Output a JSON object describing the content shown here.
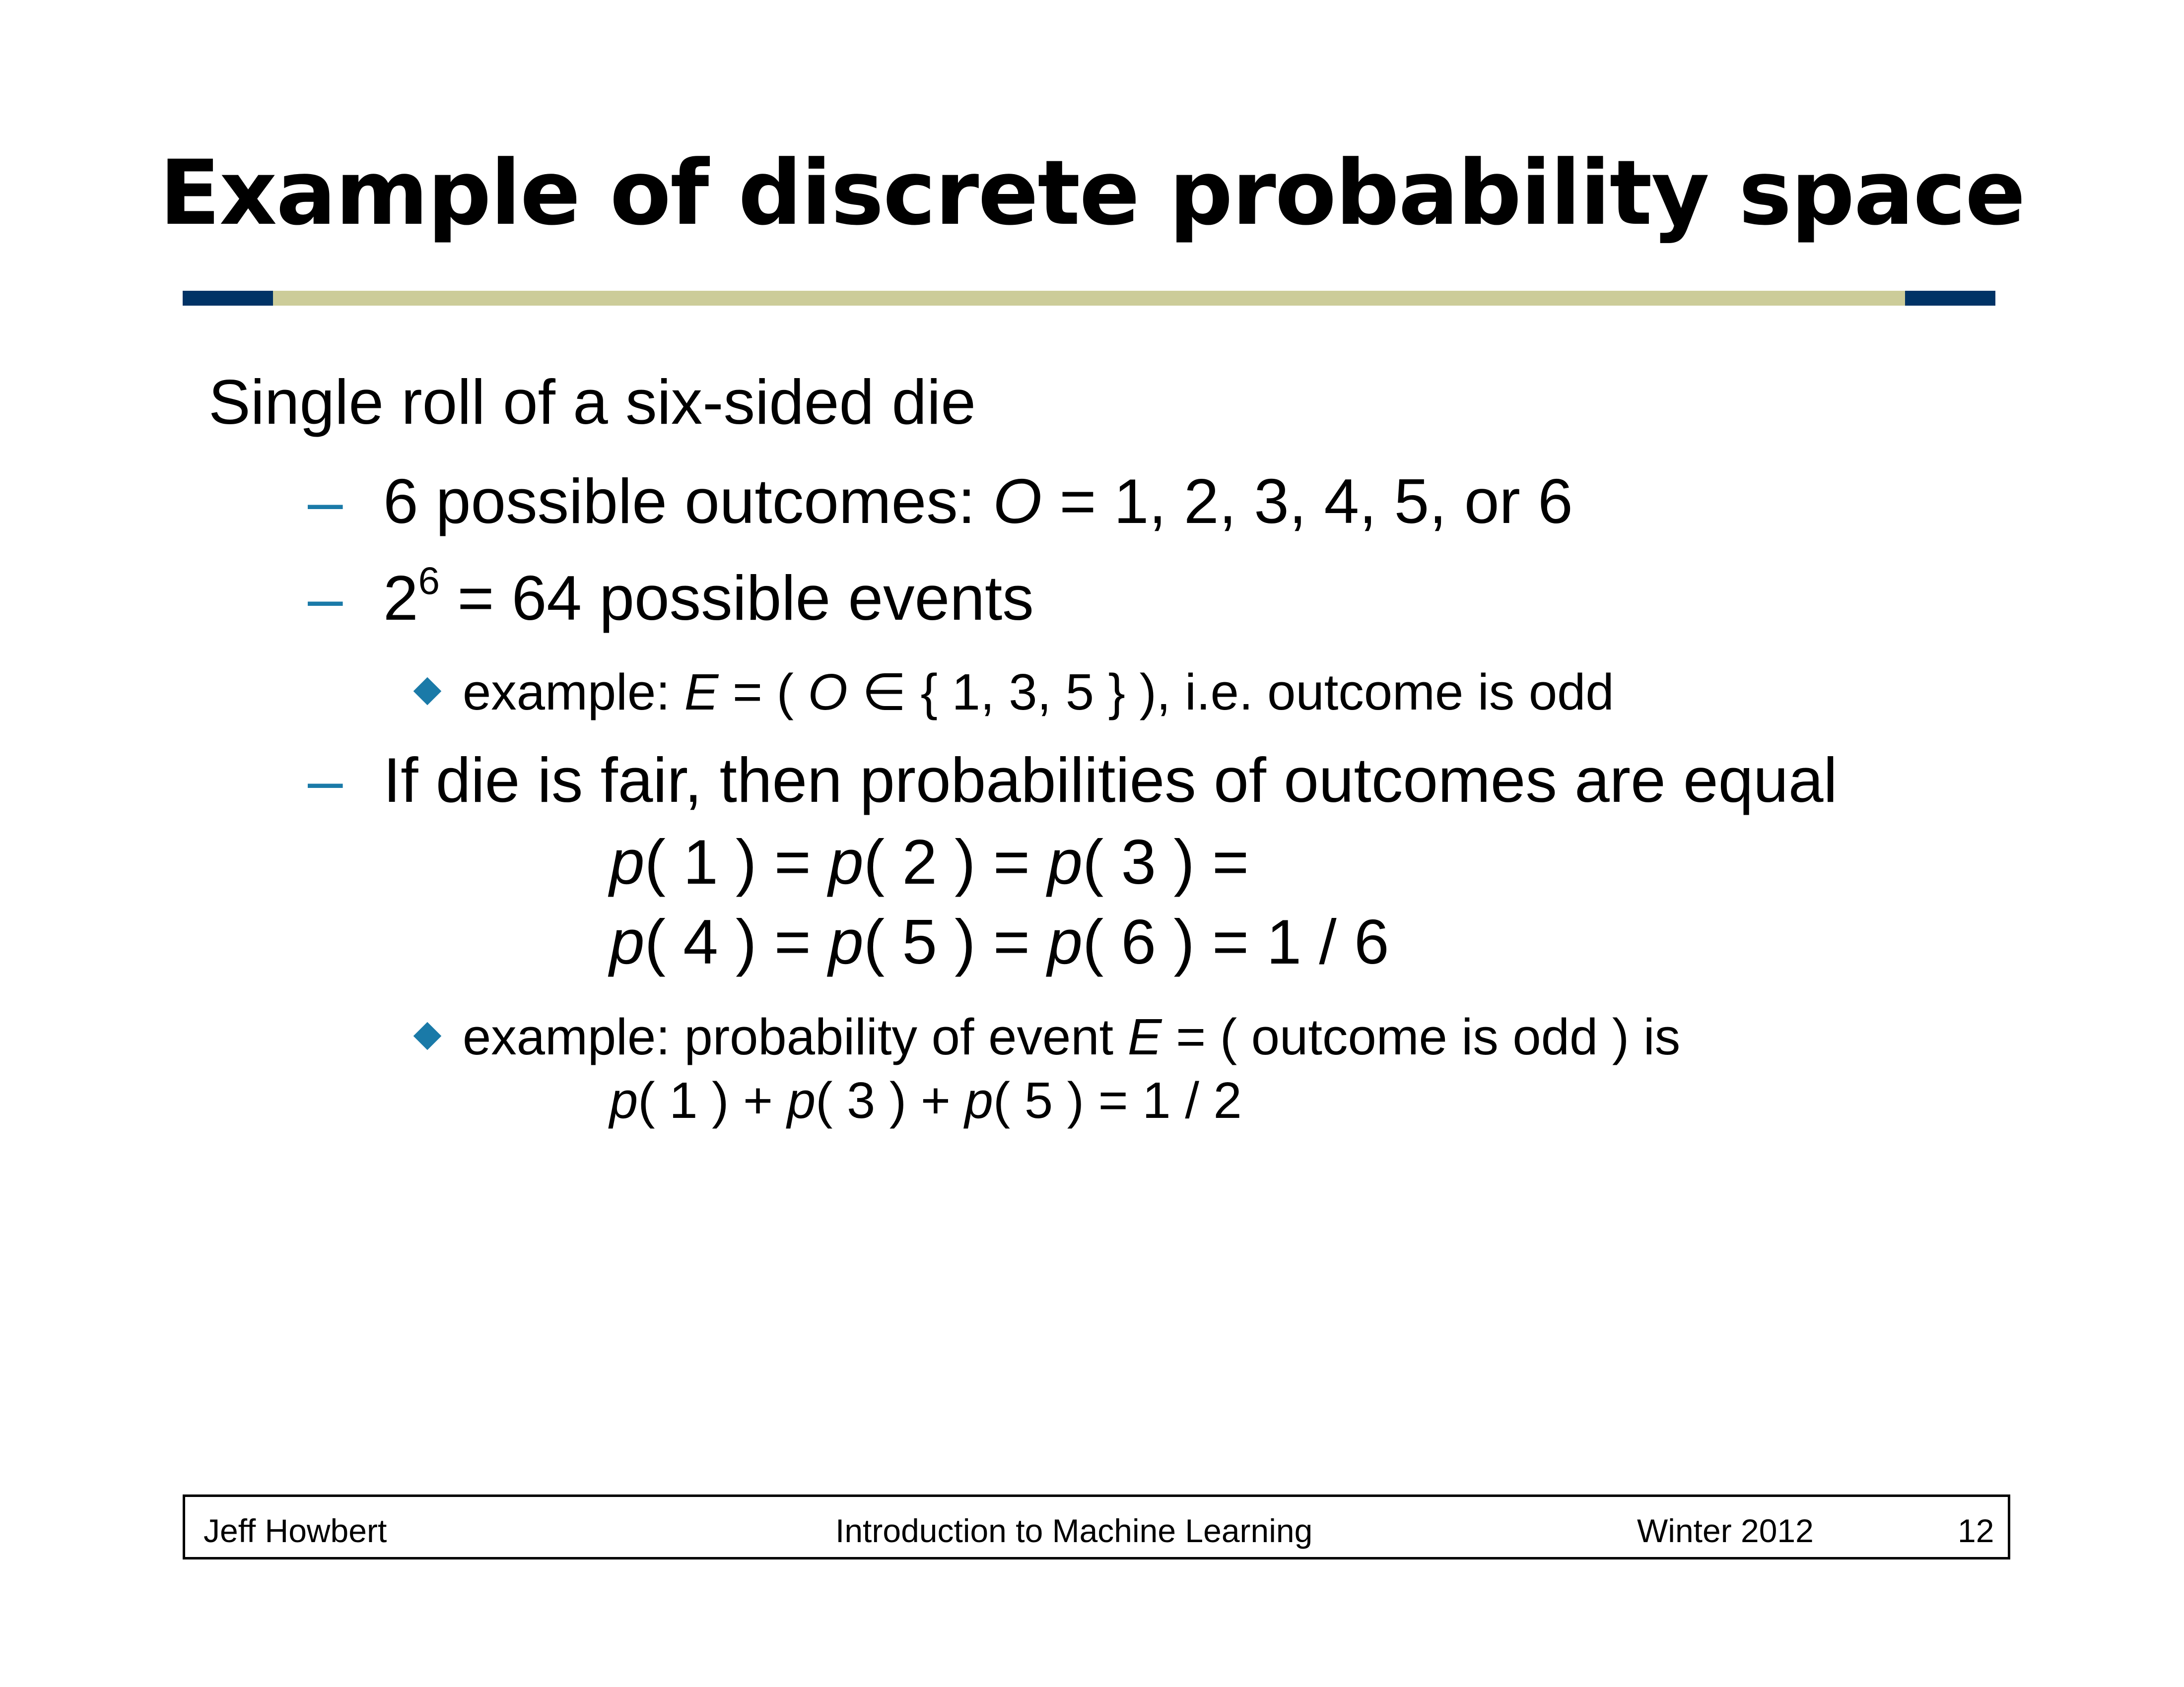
{
  "slide": {
    "title": "Example of discrete probability space"
  },
  "colors": {
    "rule": "#cccc99",
    "rule_caps": "#003366",
    "bullet": "#1a7aa8"
  },
  "content": {
    "heading": "Single roll of a six-sided die",
    "bullet1": {
      "marker": "–",
      "text_a": "6 possible outcomes: ",
      "var": "O",
      "text_b": " = 1, 2, 3, 4, 5, or 6"
    },
    "bullet2": {
      "marker": "–",
      "base": "2",
      "exponent": "6",
      "text": " = 64 possible events"
    },
    "sub1": {
      "text_a": "example: ",
      "var_e": "E",
      "text_b": " = ( ",
      "var_o": "O",
      "text_c": " ∈ { 1, 3, 5 } ), i.e. outcome is odd"
    },
    "bullet3": {
      "marker": "–",
      "text": "If die is fair, then probabilities of outcomes are equal"
    },
    "eq1": {
      "p": "p",
      "a": "( 1 ) = ",
      "b": "( 2 ) = ",
      "c": "( 3 ) ="
    },
    "eq2": {
      "p": "p",
      "a": "( 4 ) = ",
      "b": "( 5 ) = ",
      "c": "( 6 ) = 1 / 6"
    },
    "sub2": {
      "text_a": "example: probability of event ",
      "var_e": "E",
      "text_b": " = ( outcome is odd ) is"
    },
    "eq3": {
      "p": "p",
      "a": "( 1 ) + ",
      "b": "( 3 ) + ",
      "c": "( 5 ) = 1 / 2"
    }
  },
  "footer": {
    "author": "Jeff Howbert",
    "course": "Introduction to Machine Learning",
    "term": "Winter 2012",
    "page": "12"
  }
}
